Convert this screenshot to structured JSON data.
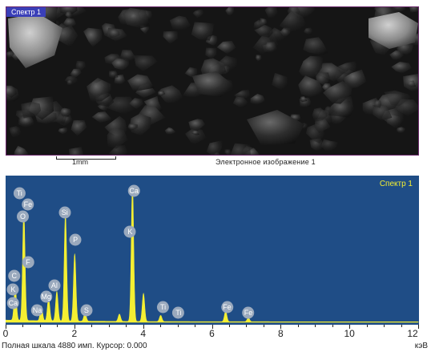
{
  "sem_image": {
    "tag": "Спектр 1",
    "scale_label": "1mm",
    "caption": "Электронное изображение 1"
  },
  "spectrum": {
    "title": "Спектр 1",
    "status": "Полная шкала 4880 имп. Курсор: 0.000",
    "units": "кэВ",
    "background_color": "#1f4d86",
    "peak_color": "#f4ef32"
  },
  "chart_data": {
    "type": "line",
    "title": "Спектр 1",
    "xlabel": "кэВ",
    "ylabel": "",
    "xlim": [
      0,
      12
    ],
    "ylim": [
      0,
      4880
    ],
    "x_ticks": [
      "0",
      "2",
      "4",
      "6",
      "8",
      "10",
      "12"
    ],
    "peaks": [
      {
        "element": "C",
        "energy": 0.28,
        "counts": 1200
      },
      {
        "element": "O",
        "energy": 0.53,
        "counts": 3900
      },
      {
        "element": "Na",
        "energy": 1.04,
        "counts": 520
      },
      {
        "element": "Mg",
        "energy": 1.25,
        "counts": 820
      },
      {
        "element": "Al",
        "energy": 1.49,
        "counts": 1050
      },
      {
        "element": "Si",
        "energy": 1.74,
        "counts": 3800
      },
      {
        "element": "P",
        "energy": 2.01,
        "counts": 2400
      },
      {
        "element": "S",
        "energy": 2.31,
        "counts": 300
      },
      {
        "element": "K",
        "energy": 3.31,
        "counts": 260
      },
      {
        "element": "Ca",
        "energy": 3.69,
        "counts": 4880
      },
      {
        "element": "Ca",
        "energy": 4.01,
        "counts": 1000
      },
      {
        "element": "Ti",
        "energy": 4.51,
        "counts": 220
      },
      {
        "element": "Fe",
        "energy": 6.4,
        "counts": 380
      },
      {
        "element": "Fe",
        "energy": 7.06,
        "counts": 140
      }
    ],
    "labels": [
      {
        "text": "Ti",
        "energy": 0.4,
        "level": 0.94
      },
      {
        "text": "Fe",
        "energy": 0.65,
        "level": 0.86
      },
      {
        "text": "O",
        "energy": 0.5,
        "level": 0.77
      },
      {
        "text": "F",
        "energy": 0.65,
        "level": 0.44
      },
      {
        "text": "C",
        "energy": 0.25,
        "level": 0.34
      },
      {
        "text": "K",
        "energy": 0.22,
        "level": 0.24
      },
      {
        "text": "Ca",
        "energy": 0.22,
        "level": 0.14
      },
      {
        "text": "Na",
        "energy": 0.92,
        "level": 0.09
      },
      {
        "text": "Mg",
        "energy": 1.18,
        "level": 0.19
      },
      {
        "text": "Al",
        "energy": 1.42,
        "level": 0.27
      },
      {
        "text": "Si",
        "energy": 1.72,
        "level": 0.8
      },
      {
        "text": "P",
        "energy": 2.03,
        "level": 0.6
      },
      {
        "text": "S",
        "energy": 2.35,
        "level": 0.09
      },
      {
        "text": "Ca",
        "energy": 3.73,
        "level": 0.96
      },
      {
        "text": "K",
        "energy": 3.62,
        "level": 0.66
      },
      {
        "text": "Ti",
        "energy": 4.58,
        "level": 0.11
      },
      {
        "text": "Ti",
        "energy": 5.03,
        "level": 0.07
      },
      {
        "text": "Fe",
        "energy": 6.44,
        "level": 0.11
      },
      {
        "text": "Fe",
        "energy": 7.06,
        "level": 0.07
      }
    ]
  }
}
